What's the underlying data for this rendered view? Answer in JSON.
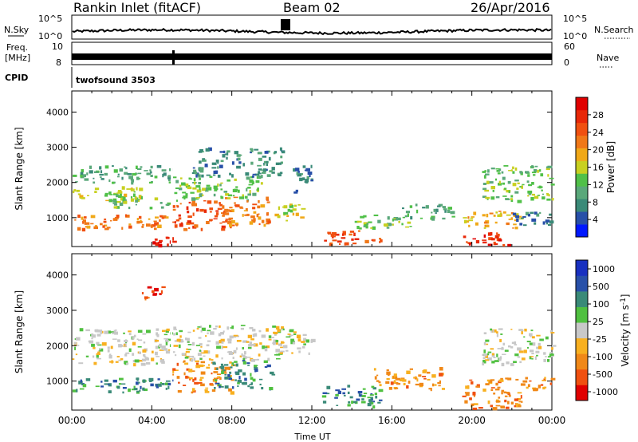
{
  "header": {
    "station": "Rankin Inlet (fitACF)",
    "beam": "Beam 02",
    "date": "26/Apr/2016"
  },
  "summary": {
    "nsky_label": "N.Sky",
    "nsearch_label": "N.Search",
    "freq_label_1": "Freq.",
    "freq_label_2": "[MHz]",
    "nave_label": "Nave",
    "cpid_label": "CPID",
    "cpid_value": "twofsound 3503",
    "noise_ticks": [
      "10^5",
      "10^0"
    ],
    "freq_ticks": [
      "10",
      "8"
    ],
    "nave_ticks": [
      "60",
      "0"
    ]
  },
  "chart_data": [
    {
      "type": "heatmap",
      "name": "power",
      "xlabel": "",
      "ylabel": "Slant Range [km]",
      "colorbar_label": "Power [dB]",
      "xlim": [
        0,
        24
      ],
      "ylim": [
        180,
        4600
      ],
      "yticks": [
        1000,
        2000,
        3000,
        4000
      ],
      "colorbar_ticks": [
        "4",
        "8",
        "12",
        "16",
        "20",
        "24",
        "28"
      ],
      "colors": [
        "#0018ff",
        "#2850a8",
        "#3a8a78",
        "#5aa87a",
        "#50c048",
        "#c8d020",
        "#f0a818",
        "#f07818",
        "#f05010",
        "#e82808",
        "#e00000"
      ],
      "regions": [
        {
          "t0": 0.0,
          "t1": 5.0,
          "r0": 700,
          "r1": 1100,
          "level": 7
        },
        {
          "t0": 0.0,
          "t1": 3.5,
          "r0": 1500,
          "r1": 1900,
          "level": 5
        },
        {
          "t0": 0.0,
          "t1": 5.0,
          "r0": 2000,
          "r1": 2500,
          "level": 3
        },
        {
          "t0": 2.0,
          "t1": 5.0,
          "r0": 1300,
          "r1": 1700,
          "level": 4
        },
        {
          "t0": 4.0,
          "t1": 5.2,
          "r0": 250,
          "r1": 600,
          "level": 10
        },
        {
          "t0": 5.0,
          "t1": 8.0,
          "r0": 700,
          "r1": 1500,
          "level": 8
        },
        {
          "t0": 5.0,
          "t1": 9.5,
          "r0": 1500,
          "r1": 2200,
          "level": 4
        },
        {
          "t0": 6.0,
          "t1": 10.5,
          "r0": 2200,
          "r1": 3000,
          "level": 2
        },
        {
          "t0": 7.5,
          "t1": 9.8,
          "r0": 800,
          "r1": 1600,
          "level": 7
        },
        {
          "t0": 10.0,
          "t1": 11.5,
          "r0": 900,
          "r1": 1400,
          "level": 5
        },
        {
          "t0": 11.0,
          "t1": 12.0,
          "r0": 1700,
          "r1": 2500,
          "level": 2
        },
        {
          "t0": 12.5,
          "t1": 15.5,
          "r0": 250,
          "r1": 650,
          "level": 8
        },
        {
          "t0": 14.0,
          "t1": 17.0,
          "r0": 700,
          "r1": 1100,
          "level": 4
        },
        {
          "t0": 16.5,
          "t1": 19.0,
          "r0": 1000,
          "r1": 1400,
          "level": 3
        },
        {
          "t0": 19.5,
          "t1": 22.0,
          "r0": 250,
          "r1": 600,
          "level": 9
        },
        {
          "t0": 19.5,
          "t1": 22.5,
          "r0": 700,
          "r1": 1200,
          "level": 6
        },
        {
          "t0": 20.5,
          "t1": 24.0,
          "r0": 1500,
          "r1": 2500,
          "level": 4
        },
        {
          "t0": 22.0,
          "t1": 24.0,
          "r0": 800,
          "r1": 1200,
          "level": 2
        }
      ]
    },
    {
      "type": "heatmap",
      "name": "velocity",
      "xlabel": "Time UT",
      "ylabel": "Slant Range [km]",
      "colorbar_label": "Velocity [m s^-1]",
      "xlim": [
        0,
        24
      ],
      "ylim": [
        180,
        4600
      ],
      "xticks": [
        "00:00",
        "04:00",
        "08:00",
        "12:00",
        "16:00",
        "20:00",
        "00:00"
      ],
      "yticks": [
        1000,
        2000,
        3000,
        4000
      ],
      "colorbar_ticks": [
        "1000",
        "500",
        "100",
        "25",
        "-25",
        "-100",
        "-500",
        "-1000"
      ],
      "colors": [
        "#e00000",
        "#f05010",
        "#f08818",
        "#f8b020",
        "#c8c8c8",
        "#50c040",
        "#3a8a78",
        "#2850a8",
        "#1830c0"
      ],
      "regions": [
        {
          "t0": 0.0,
          "t1": 5.0,
          "r0": 700,
          "r1": 1100,
          "level": 6
        },
        {
          "t0": 0.0,
          "t1": 5.0,
          "r0": 1500,
          "r1": 2500,
          "level": 4
        },
        {
          "t0": 3.5,
          "t1": 4.5,
          "r0": 3300,
          "r1": 3700,
          "level": 1
        },
        {
          "t0": 5.0,
          "t1": 8.0,
          "r0": 700,
          "r1": 1600,
          "level": 2
        },
        {
          "t0": 5.0,
          "t1": 10.5,
          "r0": 1600,
          "r1": 2600,
          "level": 4
        },
        {
          "t0": 7.0,
          "t1": 10.0,
          "r0": 800,
          "r1": 1600,
          "level": 6
        },
        {
          "t0": 10.0,
          "t1": 12.0,
          "r0": 1800,
          "r1": 2500,
          "level": 4
        },
        {
          "t0": 12.5,
          "t1": 15.5,
          "r0": 300,
          "r1": 900,
          "level": 6
        },
        {
          "t0": 15.0,
          "t1": 18.5,
          "r0": 800,
          "r1": 1400,
          "level": 2
        },
        {
          "t0": 19.5,
          "t1": 22.5,
          "r0": 250,
          "r1": 1100,
          "level": 2
        },
        {
          "t0": 20.5,
          "t1": 24.0,
          "r0": 1500,
          "r1": 2500,
          "level": 4
        },
        {
          "t0": 22.5,
          "t1": 24.0,
          "r0": 800,
          "r1": 1200,
          "level": 2
        }
      ]
    }
  ]
}
